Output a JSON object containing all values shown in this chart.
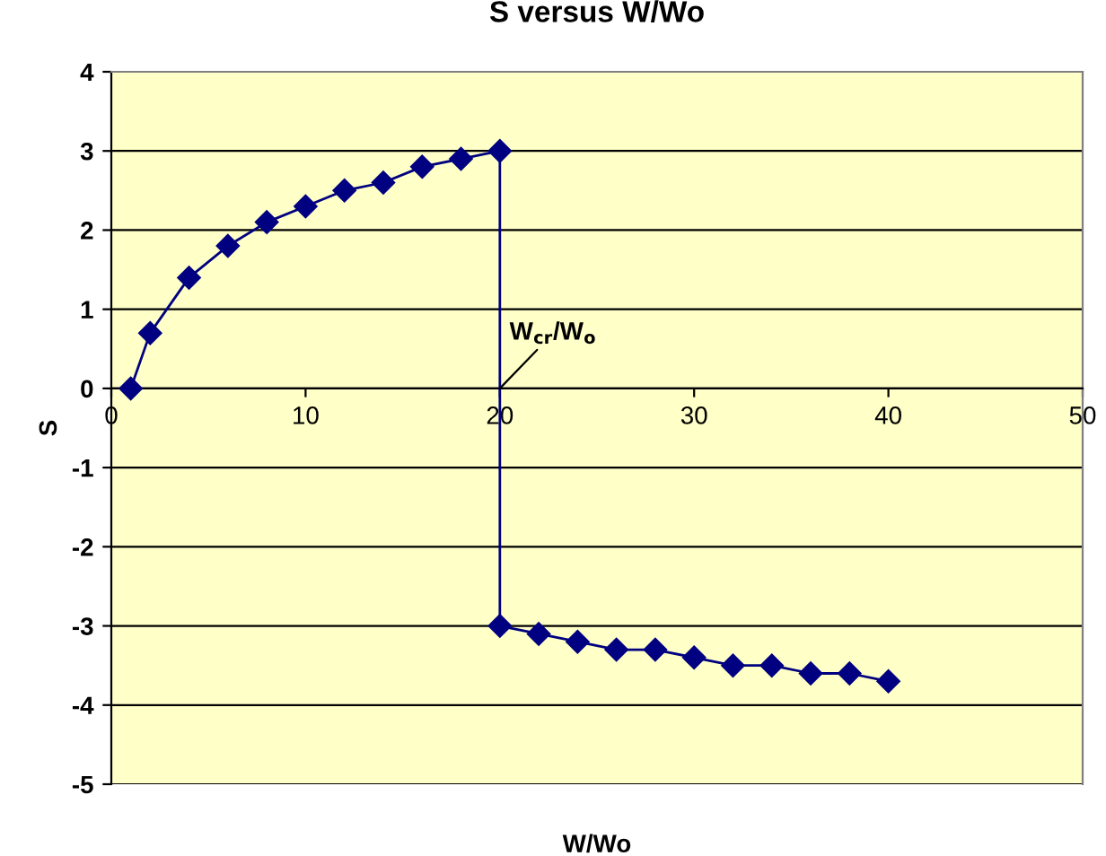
{
  "chart_data": {
    "type": "line",
    "title": "S versus W/Wo",
    "xlabel": "W/Wo",
    "ylabel": "S",
    "series": [
      {
        "color": "#000080",
        "x": [
          1,
          2,
          4,
          6,
          8,
          10,
          12,
          14,
          16,
          18,
          20,
          20,
          22,
          24,
          26,
          28,
          30,
          32,
          34,
          36,
          38,
          40
        ],
        "values": [
          0,
          0.7,
          1.4,
          1.8,
          2.1,
          2.3,
          2.5,
          2.6,
          2.8,
          2.9,
          3.0,
          -3.0,
          -3.1,
          -3.2,
          -3.3,
          -3.3,
          -3.4,
          -3.5,
          -3.5,
          -3.6,
          -3.6,
          -3.7
        ]
      }
    ],
    "annotations": [
      {
        "text": "W$_{cr}$/W$_{o}$",
        "x": 20,
        "y": 0
      }
    ],
    "xlim": [
      0,
      50
    ],
    "xticks": [
      0,
      10,
      20,
      30,
      40,
      50
    ],
    "ylim": [
      -5,
      4
    ],
    "yticks": [
      -5,
      -4,
      -3,
      -2,
      -1,
      0,
      1,
      2,
      3,
      4
    ],
    "grid": "y",
    "marker": "diamond",
    "line_style": "solid",
    "legend": false
  }
}
